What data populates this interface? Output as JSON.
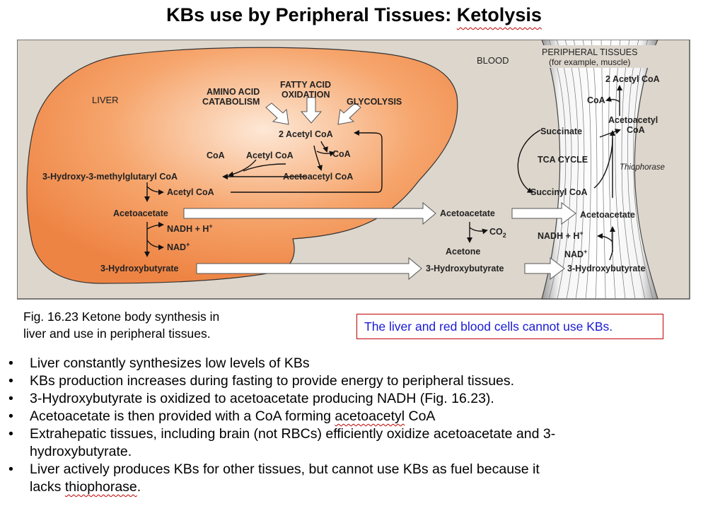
{
  "title": {
    "part1": "KBs use by Peripheral Tissues: ",
    "part2": "Ketolysis"
  },
  "diagram": {
    "liver": "LIVER",
    "blood": "BLOOD",
    "peripheral": "PERIPHERAL TISSUES",
    "peripheral_sub": "(for example, muscle)",
    "amino_1": "AMINO ACID",
    "amino_2": "CATABOLISM",
    "fatty_1": "FATTY ACID",
    "fatty_2": "OXIDATION",
    "glycolysis": "GLYCOLYSIS",
    "two_acetyl_coa": "2 Acetyl CoA",
    "coa_left": "CoA",
    "acetyl_coa": "Acetyl CoA",
    "coa_right": "CoA",
    "acetoacetyl_coa": "Acetoacetyl CoA",
    "hmg_coa": "3-Hydroxy-3-methylglutaryl CoA",
    "acetyl_coa_2": "Acetyl CoA",
    "acetoacetate_liver": "Acetoacetate",
    "nadh": "NADH + H",
    "nad": "NAD",
    "hydroxybutyrate_liver": "3-Hydroxybutyrate",
    "acetoacetate_blood": "Acetoacetate",
    "co2": "CO",
    "acetone": "Acetone",
    "hydroxybutyrate_blood": "3-Hydroxybutyrate",
    "p_two_acetyl_coa": "2 Acetyl CoA",
    "p_coa": "CoA",
    "p_acetoacetyl_1": "Acetoacetyl",
    "p_acetoacetyl_2": "CoA",
    "p_succinate": "Succinate",
    "p_tca": "TCA CYCLE",
    "p_thiophorase": "Thiophorase",
    "p_succinyl": "Succinyl CoA",
    "p_acetoacetate": "Acetoacetate",
    "p_nadh": "NADH + H",
    "p_nad": "NAD",
    "p_hydroxybutyrate": "3-Hydroxybutyrate",
    "sup_plus": "+",
    "sub_2": "2"
  },
  "caption": {
    "line1": "Fig. 16.23 Ketone body synthesis in",
    "line2": "liver and use in peripheral tissues."
  },
  "note": "The liver and red blood cells cannot use KBs.",
  "bullets": {
    "b1": "Liver constantly synthesizes low levels of KBs",
    "b2": "KBs production increases during fasting to provide energy to peripheral tissues.",
    "b3": "3-Hydroxybutyrate is oxidized to acetoacetate producing NADH (Fig. 16.23).",
    "b4_pre": "Acetoacetate is then provided with a CoA forming ",
    "b4_sq": "acetoacetyl",
    "b4_post": " CoA",
    "b5_line1": "Extrahepatic tissues, including brain (not RBCs) efficiently oxidize acetoacetate and 3-",
    "b5_line2": "hydroxybutyrate.",
    "b6_line1": "Liver actively produces KBs for other tissues, but cannot use KBs as fuel because it",
    "b6_pre2": "lacks ",
    "b6_sq": "thiophorase",
    "b6_post2": "."
  },
  "colors": {
    "liver": "#f08a4b",
    "panel": "#ddd6cc",
    "note_border": "#c00000",
    "note_text": "#1a1ad4"
  }
}
